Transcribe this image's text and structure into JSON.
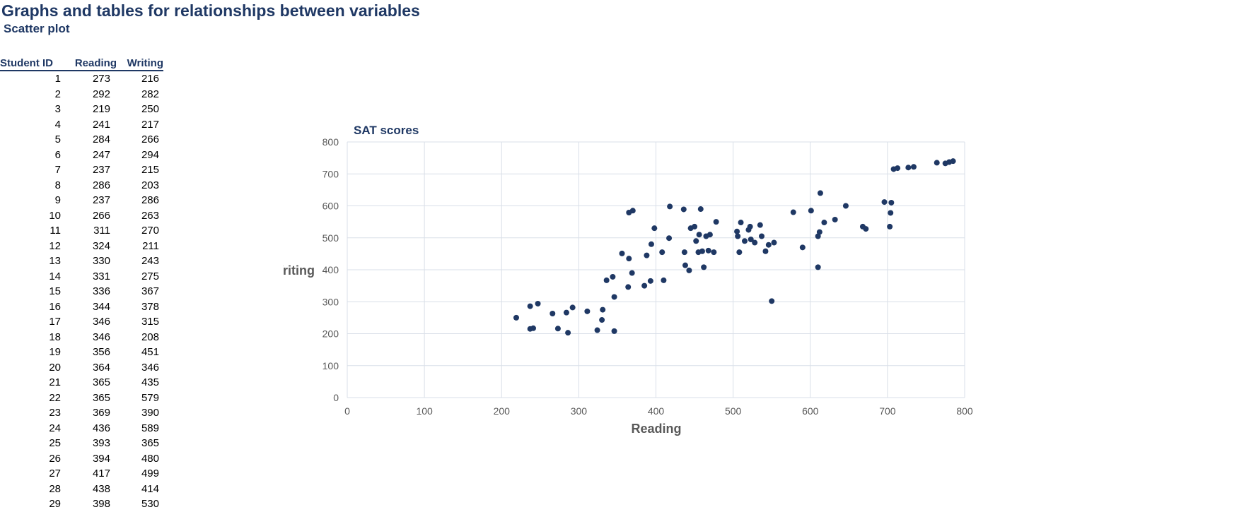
{
  "page": {
    "title": "Graphs and tables for relationships between variables",
    "subtitle": "Scatter plot"
  },
  "table": {
    "headers": [
      "Student ID",
      "Reading",
      "Writing"
    ],
    "rows": [
      [
        "1",
        "273",
        "216"
      ],
      [
        "2",
        "292",
        "282"
      ],
      [
        "3",
        "219",
        "250"
      ],
      [
        "4",
        "241",
        "217"
      ],
      [
        "5",
        "284",
        "266"
      ],
      [
        "6",
        "247",
        "294"
      ],
      [
        "7",
        "237",
        "215"
      ],
      [
        "8",
        "286",
        "203"
      ],
      [
        "9",
        "237",
        "286"
      ],
      [
        "10",
        "266",
        "263"
      ],
      [
        "11",
        "311",
        "270"
      ],
      [
        "12",
        "324",
        "211"
      ],
      [
        "13",
        "330",
        "243"
      ],
      [
        "14",
        "331",
        "275"
      ],
      [
        "15",
        "336",
        "367"
      ],
      [
        "16",
        "344",
        "378"
      ],
      [
        "17",
        "346",
        "315"
      ],
      [
        "18",
        "346",
        "208"
      ],
      [
        "19",
        "356",
        "451"
      ],
      [
        "20",
        "364",
        "346"
      ],
      [
        "21",
        "365",
        "435"
      ],
      [
        "22",
        "365",
        "579"
      ],
      [
        "23",
        "369",
        "390"
      ],
      [
        "24",
        "436",
        "589"
      ],
      [
        "25",
        "393",
        "365"
      ],
      [
        "26",
        "394",
        "480"
      ],
      [
        "27",
        "417",
        "499"
      ],
      [
        "28",
        "438",
        "414"
      ],
      [
        "29",
        "398",
        "530"
      ]
    ]
  },
  "colors": {
    "heading": "#1f3864",
    "marker": "#1f3864",
    "axis_text": "#595959",
    "gridline": "#d9dfe8"
  },
  "chart_data": {
    "type": "scatter",
    "title": "SAT scores",
    "xlabel": "Reading",
    "ylabel": "Writing",
    "xlim": [
      0,
      800
    ],
    "ylim": [
      0,
      800
    ],
    "xticks": [
      0,
      100,
      200,
      300,
      400,
      500,
      600,
      700,
      800
    ],
    "yticks": [
      0,
      100,
      200,
      300,
      400,
      500,
      600,
      700,
      800
    ],
    "grid": true,
    "legend": "none",
    "points": [
      [
        273,
        216
      ],
      [
        292,
        282
      ],
      [
        219,
        250
      ],
      [
        241,
        217
      ],
      [
        284,
        266
      ],
      [
        247,
        294
      ],
      [
        237,
        215
      ],
      [
        286,
        203
      ],
      [
        237,
        286
      ],
      [
        266,
        263
      ],
      [
        311,
        270
      ],
      [
        324,
        211
      ],
      [
        330,
        243
      ],
      [
        331,
        275
      ],
      [
        336,
        367
      ],
      [
        344,
        378
      ],
      [
        346,
        315
      ],
      [
        346,
        208
      ],
      [
        356,
        451
      ],
      [
        364,
        346
      ],
      [
        365,
        435
      ],
      [
        365,
        579
      ],
      [
        369,
        390
      ],
      [
        436,
        589
      ],
      [
        393,
        365
      ],
      [
        394,
        480
      ],
      [
        417,
        499
      ],
      [
        438,
        414
      ],
      [
        398,
        530
      ],
      [
        370,
        585
      ],
      [
        385,
        350
      ],
      [
        388,
        445
      ],
      [
        408,
        455
      ],
      [
        410,
        367
      ],
      [
        418,
        598
      ],
      [
        437,
        455
      ],
      [
        443,
        398
      ],
      [
        445,
        530
      ],
      [
        450,
        535
      ],
      [
        452,
        490
      ],
      [
        455,
        455
      ],
      [
        456,
        510
      ],
      [
        458,
        590
      ],
      [
        460,
        458
      ],
      [
        462,
        408
      ],
      [
        465,
        505
      ],
      [
        468,
        460
      ],
      [
        470,
        510
      ],
      [
        475,
        455
      ],
      [
        478,
        550
      ],
      [
        505,
        520
      ],
      [
        506,
        505
      ],
      [
        508,
        455
      ],
      [
        510,
        548
      ],
      [
        515,
        490
      ],
      [
        520,
        525
      ],
      [
        522,
        535
      ],
      [
        523,
        495
      ],
      [
        528,
        485
      ],
      [
        535,
        540
      ],
      [
        537,
        505
      ],
      [
        542,
        458
      ],
      [
        546,
        478
      ],
      [
        550,
        302
      ],
      [
        553,
        485
      ],
      [
        578,
        580
      ],
      [
        590,
        470
      ],
      [
        601,
        585
      ],
      [
        610,
        408
      ],
      [
        610,
        505
      ],
      [
        612,
        518
      ],
      [
        613,
        640
      ],
      [
        618,
        548
      ],
      [
        632,
        557
      ],
      [
        646,
        600
      ],
      [
        668,
        535
      ],
      [
        672,
        528
      ],
      [
        696,
        612
      ],
      [
        703,
        535
      ],
      [
        704,
        578
      ],
      [
        705,
        610
      ],
      [
        708,
        715
      ],
      [
        713,
        718
      ],
      [
        727,
        720
      ],
      [
        734,
        722
      ],
      [
        764,
        735
      ],
      [
        775,
        733
      ],
      [
        780,
        737
      ],
      [
        785,
        740
      ]
    ]
  }
}
